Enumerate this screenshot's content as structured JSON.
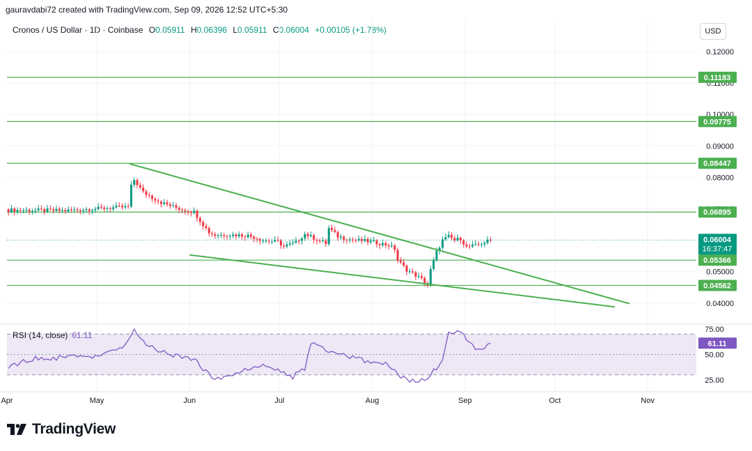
{
  "header": {
    "author_line": "gauravdabi72 created with TradingView.com, Sep 09, 2026 12:52 UTC+5:30"
  },
  "legend": {
    "symbol": "Cronos / US Dollar · 1D · Coinbase",
    "open_label": "O",
    "open": "0.05911",
    "high_label": "H",
    "high": "0.06396",
    "low_label": "L",
    "low": "0.05911",
    "close_label": "C",
    "close": "0.06004",
    "change": "+0.00105 (+1.78%)"
  },
  "currency": "USD",
  "rsi": {
    "label": "RSI (14, close)",
    "value": "61.11"
  },
  "brand": "TradingView",
  "colors": {
    "up": "#089981",
    "down": "#f23645",
    "line": "#4caf50",
    "rsi": "#7e57c2",
    "rsi_band": "#ede7f6"
  },
  "chart_data": [
    {
      "type": "candlestick",
      "title": "Cronos / US Dollar · 1D · Coinbase",
      "x_tick_labels": [
        "Apr",
        "May",
        "Jun",
        "Jul",
        "Aug",
        "Sep",
        "Oct",
        "Nov"
      ],
      "y_tick_labels": [
        "0.12000",
        "0.11000",
        "0.10000",
        "0.09000",
        "0.08000",
        "0.07000",
        "0.05000",
        "0.04000"
      ],
      "y_axis_ticks": [
        0.12,
        0.11,
        0.1,
        0.09,
        0.08,
        0.07,
        0.05,
        0.04
      ],
      "ylim": [
        0.0365,
        0.1245
      ],
      "horizontal_levels": [
        {
          "label": "0.11183",
          "value": 0.11183
        },
        {
          "label": "0.09775",
          "value": 0.09775
        },
        {
          "label": "0.08447",
          "value": 0.08447
        },
        {
          "label": "0.06895",
          "value": 0.06895
        },
        {
          "label": "0.05366",
          "value": 0.05366
        },
        {
          "label": "0.04562",
          "value": 0.04562
        }
      ],
      "current_price": {
        "label": "0.06004",
        "value": 0.06004,
        "countdown": "16:37:47"
      },
      "trendlines": [
        {
          "from": [
            "2026-05-12",
            0.0843
          ],
          "to": [
            "2026-10-26",
            0.0398
          ]
        },
        {
          "from": [
            "2026-06-01",
            0.0553
          ],
          "to": [
            "2026-10-21",
            0.0388
          ]
        }
      ],
      "wedge_touches": [
        "2026-07-17",
        "2026-08-09"
      ],
      "grid": true
    },
    {
      "type": "line",
      "title": "RSI (14, close)",
      "y_tick_labels": [
        "75.00",
        "50.00",
        "25.00"
      ],
      "ylim": [
        20,
        78
      ],
      "bands": [
        70,
        50,
        30
      ],
      "last": 61.11
    }
  ]
}
